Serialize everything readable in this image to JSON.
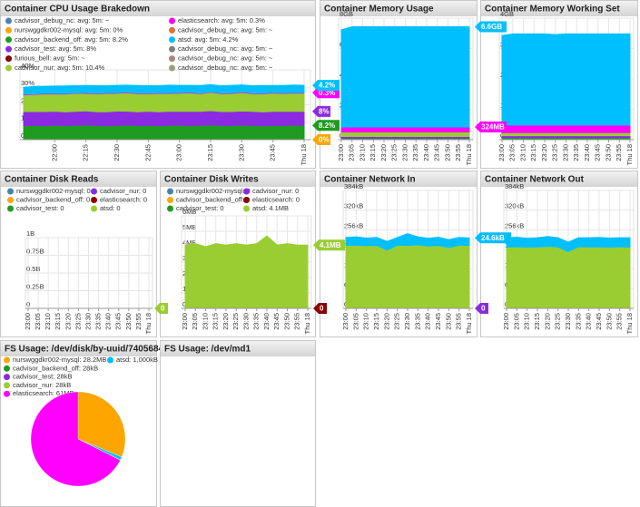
{
  "chart_data": [
    {
      "type": "area",
      "title": "Container CPU Usage Brakedown",
      "categories": [
        null,
        null,
        null,
        "22:00",
        null,
        null,
        "22:15",
        null,
        null,
        "22:30",
        null,
        null,
        "22:45",
        null,
        null,
        "23:00",
        null,
        null,
        "23:15",
        null,
        null,
        "23:30",
        null,
        null,
        "23:45",
        null,
        null,
        "Thu 18"
      ],
      "ylim": [
        0,
        40
      ],
      "yticks": [
        {
          "value": 0,
          "label": "0%"
        },
        {
          "value": 10,
          "label": "10%"
        },
        {
          "value": 20,
          "label": "20%"
        },
        {
          "value": 30,
          "label": "30%"
        },
        {
          "value": 40,
          "label": "40%"
        }
      ],
      "series": [
        {
          "name": "cadvisor_debug_nc: avg: 5m: ~",
          "color": "#4682b4"
        },
        {
          "name": "nurswggdkr002-mysql: avg: 5m: 0%",
          "color": "#ffa500",
          "badge": "0%",
          "values": [
            0,
            0,
            0,
            0,
            0,
            0,
            0,
            0,
            0,
            0,
            0,
            0,
            0,
            0,
            0,
            0,
            0,
            0,
            0,
            0,
            0,
            0,
            0,
            0,
            0,
            0,
            0,
            0
          ]
        },
        {
          "name": "cadvisor_backend_off: avg: 5m: 8.2%",
          "color": "#1f9b1f",
          "badge": "8.2%",
          "values": [
            8.1,
            8.2,
            8.0,
            8.3,
            8.1,
            8.2,
            8.4,
            8.1,
            8.0,
            8.2,
            8.3,
            8.1,
            8.2,
            8.0,
            8.2,
            8.3,
            8.1,
            8.2,
            8.4,
            8.2,
            8.1,
            8.3,
            8.2,
            8.0,
            8.2,
            8.1,
            8.3,
            8.2
          ]
        },
        {
          "name": "cadvisor_test: avg: 5m: 8%",
          "color": "#8a2be2",
          "badge": "8%",
          "values": [
            8.0,
            7.9,
            8.1,
            8.0,
            7.8,
            8.0,
            8.1,
            7.9,
            8.0,
            8.2,
            8.0,
            7.9,
            8.1,
            8.0,
            8.0,
            7.9,
            8.1,
            8.0,
            8.2,
            7.9,
            8.0,
            8.1,
            8.0,
            7.9,
            8.0,
            8.1,
            8.0,
            8.0
          ]
        },
        {
          "name": "furious_bell: avg: 5m: ~",
          "color": "#8b0000"
        },
        {
          "name": "cadvisor_nur: avg: 5m: 10.4%",
          "color": "#9acd32",
          "values": [
            9.6,
            9.8,
            10.1,
            9.9,
            10.2,
            10.4,
            10.0,
            10.3,
            10.5,
            10.2,
            10.6,
            10.4,
            10.1,
            10.5,
            10.3,
            10.4,
            10.6,
            10.2,
            10.5,
            10.3,
            10.4,
            10.6,
            10.2,
            10.4,
            10.5,
            10.3,
            10.4,
            10.4
          ]
        },
        {
          "name": "elasticsearch: avg: 5m: 0.3%",
          "color": "#ff00ff",
          "badge": "0.3%",
          "values": [
            0.3,
            0.3,
            0.3,
            0.3,
            0.3,
            0.3,
            0.3,
            0.3,
            0.3,
            0.3,
            0.3,
            0.3,
            0.3,
            0.3,
            0.3,
            0.3,
            0.3,
            0.3,
            0.3,
            0.3,
            0.3,
            0.3,
            0.3,
            0.3,
            0.3,
            0.3,
            0.3,
            0.3
          ]
        },
        {
          "name": "cadvisor_debug_nc: avg: 5m: ~",
          "color": "#e0703c"
        },
        {
          "name": "atsd: avg: 5m: 4.2%",
          "color": "#00bfff",
          "badge": "4.2%",
          "values": [
            4.0,
            4.3,
            4.1,
            4.2,
            4.4,
            4.0,
            4.2,
            4.3,
            4.1,
            4.2,
            4.0,
            4.3,
            4.2,
            4.1,
            4.4,
            4.2,
            4.0,
            4.3,
            4.1,
            4.2,
            4.3,
            4.1,
            4.2,
            4.4,
            4.0,
            4.2,
            4.3,
            4.2
          ]
        },
        {
          "name": "cadvisor_debug_nc: avg: 5m: ~",
          "color": "#808080"
        },
        {
          "name": "cadvisor_debug_nc: avg: 5m: ~",
          "color": "#a58a7a"
        },
        {
          "name": "cadvisor_debug_nc: avg: 5m: ~",
          "color": "#9aa07a"
        }
      ]
    },
    {
      "type": "area",
      "title": "Container Memory Usage",
      "categories": [
        "23:00",
        "23:05",
        "23:10",
        "23:15",
        "23:20",
        "23:25",
        "23:30",
        "23:35",
        "23:40",
        "23:45",
        "23:50",
        "23:55",
        "Thu 18"
      ],
      "ylim": [
        0,
        8
      ],
      "yticks": [
        0,
        {
          "value": 2,
          "label": "2GB"
        },
        {
          "value": 4,
          "label": "4GB"
        },
        {
          "value": 6,
          "label": "6GB"
        },
        {
          "value": 8,
          "label": "8GB"
        }
      ],
      "series": [
        {
          "color": "#ffa500",
          "values": [
            0.03,
            0.03,
            0.03,
            0.03,
            0.03,
            0.03,
            0.03,
            0.03,
            0.03,
            0.03,
            0.03,
            0.03,
            0.03
          ]
        },
        {
          "color": "#1f9b1f",
          "values": [
            0.08,
            0.08,
            0.08,
            0.08,
            0.08,
            0.08,
            0.08,
            0.08,
            0.08,
            0.08,
            0.08,
            0.08,
            0.08
          ]
        },
        {
          "color": "#8a2be2",
          "values": [
            0.1,
            0.1,
            0.1,
            0.1,
            0.1,
            0.1,
            0.1,
            0.1,
            0.1,
            0.1,
            0.1,
            0.1,
            0.1
          ]
        },
        {
          "color": "#9acd32",
          "values": [
            0.3,
            0.3,
            0.3,
            0.3,
            0.3,
            0.3,
            0.3,
            0.3,
            0.3,
            0.3,
            0.3,
            0.3,
            0.3
          ]
        },
        {
          "color": "#ff00ff",
          "badge": "324MB",
          "values": [
            0.324,
            0.324,
            0.324,
            0.324,
            0.324,
            0.324,
            0.324,
            0.324,
            0.324,
            0.324,
            0.324,
            0.324,
            0.324
          ]
        },
        {
          "color": "#00bfff",
          "badge": "6.6GB",
          "values": [
            6.4,
            6.6,
            6.6,
            6.6,
            6.6,
            6.6,
            6.6,
            6.6,
            6.6,
            6.6,
            6.6,
            6.6,
            6.6
          ]
        }
      ]
    },
    {
      "type": "area",
      "title": "Container Memory Working Set",
      "categories": [
        "23:00",
        "23:05",
        "23:10",
        "23:15",
        "23:20",
        "23:25",
        "23:30",
        "23:35",
        "23:40",
        "23:45",
        "23:50",
        "23:55",
        "Thu 18"
      ],
      "ylim": [
        0,
        4
      ],
      "yticks": [
        0,
        {
          "value": 1,
          "label": "1GB"
        },
        {
          "value": 2,
          "label": "2GB"
        },
        {
          "value": 3,
          "label": "3GB"
        },
        {
          "value": 4,
          "label": "4GB"
        }
      ],
      "series": [
        {
          "color": "#ffa500",
          "values": [
            0.02,
            0.02,
            0.02,
            0.02,
            0.02,
            0.02,
            0.02,
            0.02,
            0.02,
            0.02,
            0.02,
            0.02,
            0.02
          ]
        },
        {
          "color": "#1f9b1f",
          "values": [
            0.05,
            0.05,
            0.05,
            0.05,
            0.05,
            0.05,
            0.05,
            0.05,
            0.05,
            0.05,
            0.05,
            0.05,
            0.05
          ]
        },
        {
          "color": "#8a2be2",
          "values": [
            0.06,
            0.06,
            0.06,
            0.06,
            0.06,
            0.06,
            0.06,
            0.06,
            0.06,
            0.06,
            0.06,
            0.06,
            0.06
          ]
        },
        {
          "color": "#9acd32",
          "values": [
            0.1,
            0.1,
            0.1,
            0.1,
            0.1,
            0.1,
            0.1,
            0.1,
            0.1,
            0.1,
            0.1,
            0.1,
            0.1
          ]
        },
        {
          "color": "#ff00ff",
          "values": [
            0.25,
            0.25,
            0.25,
            0.25,
            0.25,
            0.25,
            0.25,
            0.25,
            0.25,
            0.25,
            0.25,
            0.25,
            0.25
          ]
        },
        {
          "color": "#00bfff",
          "values": [
            2.95,
            3.0,
            3.0,
            3.0,
            3.0,
            2.98,
            3.0,
            3.0,
            3.0,
            3.0,
            3.0,
            3.0,
            3.0
          ]
        }
      ]
    },
    {
      "type": "area",
      "title": "Container Disk Reads",
      "categories": [
        "23:00",
        "23:05",
        "23:10",
        "23:15",
        "23:20",
        "23:25",
        "23:30",
        "23:35",
        "23:40",
        "23:45",
        "23:50",
        "23:55",
        "Thu 18"
      ],
      "ylim": [
        0,
        1
      ],
      "yticks": [
        0,
        {
          "value": 0.25,
          "label": "0.25B"
        },
        {
          "value": 0.5,
          "label": "0.5B"
        },
        {
          "value": 0.75,
          "label": "0.75B"
        },
        {
          "value": 1,
          "label": "1B"
        }
      ],
      "series": [
        {
          "name": "nurswggdkr002-mysql: 0",
          "color": "#4682b4",
          "values": [
            0,
            0,
            0,
            0,
            0,
            0,
            0,
            0,
            0,
            0,
            0,
            0,
            0
          ]
        },
        {
          "name": "cadvisor_nur: 0",
          "color": "#8a2be2",
          "values": [
            0,
            0,
            0,
            0,
            0,
            0,
            0,
            0,
            0,
            0,
            0,
            0,
            0
          ]
        },
        {
          "name": "cadvisor_backend_off: 0",
          "color": "#ffa500",
          "values": [
            0,
            0,
            0,
            0,
            0,
            0,
            0,
            0,
            0,
            0,
            0,
            0,
            0
          ]
        },
        {
          "name": "elasticsearch: 0",
          "color": "#8b0000",
          "values": [
            0,
            0,
            0,
            0,
            0,
            0,
            0,
            0,
            0,
            0,
            0,
            0,
            0
          ]
        },
        {
          "name": "cadvisor_test: 0",
          "color": "#1f9b1f",
          "values": [
            0,
            0,
            0,
            0,
            0,
            0,
            0,
            0,
            0,
            0,
            0,
            0,
            0
          ]
        },
        {
          "name": "atsd: 0",
          "color": "#9acd32",
          "badge": "0",
          "values": [
            0,
            0,
            0,
            0,
            0,
            0,
            0,
            0,
            0,
            0,
            0,
            0,
            0
          ]
        }
      ]
    },
    {
      "type": "area",
      "title": "Container Disk Writes",
      "categories": [
        "23:00",
        "23:05",
        "23:10",
        "23:15",
        "23:20",
        "23:25",
        "23:30",
        "23:35",
        "23:40",
        "23:45",
        "23:50",
        "23:55",
        "Thu 18"
      ],
      "ylim": [
        0,
        6
      ],
      "yticks": [
        0,
        {
          "value": 1,
          "label": "1MB"
        },
        {
          "value": 2,
          "label": "2MB"
        },
        {
          "value": 3,
          "label": "3MB"
        },
        {
          "value": 4,
          "label": "4MB"
        },
        {
          "value": 5,
          "label": "5MB"
        },
        {
          "value": 6,
          "label": "6MB"
        }
      ],
      "series": [
        {
          "name": "nurswggdkr002-mysql: 0",
          "color": "#4682b4",
          "values": [
            0,
            0,
            0,
            0,
            0,
            0,
            0,
            0,
            0,
            0,
            0,
            0,
            0
          ]
        },
        {
          "name": "cadvisor_nur: 0",
          "color": "#8a2be2",
          "values": [
            0,
            0,
            0,
            0,
            0,
            0,
            0,
            0,
            0,
            0,
            0,
            0,
            0
          ]
        },
        {
          "name": "cadvisor_backend_off: 0",
          "color": "#ffa500",
          "values": [
            0,
            0,
            0,
            0,
            0,
            0,
            0,
            0,
            0,
            0,
            0,
            0,
            0
          ]
        },
        {
          "name": "elasticsearch: 0",
          "color": "#8b0000",
          "badge": "0",
          "values": [
            0,
            0,
            0,
            0,
            0,
            0,
            0,
            0,
            0,
            0,
            0,
            0,
            0
          ]
        },
        {
          "name": "cadvisor_test: 0",
          "color": "#1f9b1f",
          "values": [
            0,
            0,
            0,
            0,
            0,
            0,
            0,
            0,
            0,
            0,
            0,
            0,
            0
          ]
        },
        {
          "name": "atsd: 4.1MB",
          "color": "#9acd32",
          "badge": "4.1MB",
          "values": [
            4.1,
            4.2,
            4.0,
            4.2,
            4.1,
            4.2,
            4.1,
            4.2,
            4.7,
            4.1,
            4.2,
            4.1,
            4.1
          ]
        }
      ]
    },
    {
      "type": "area",
      "title": "Container Network In",
      "categories": [
        "23:00",
        "23:05",
        "23:10",
        "23:15",
        "23:20",
        "23:25",
        "23:30",
        "23:35",
        "23:40",
        "23:45",
        "23:50",
        "23:55",
        "Thu 18"
      ],
      "ylim": [
        0,
        384
      ],
      "yticks": [
        0,
        {
          "value": 64,
          "label": "64kB"
        },
        {
          "value": 128,
          "label": "128kB"
        },
        {
          "value": 192,
          "label": "192kB"
        },
        {
          "value": 256,
          "label": "256kB"
        },
        {
          "value": 320,
          "label": "320kB"
        },
        {
          "value": 384,
          "label": "384kB"
        }
      ],
      "series": [
        {
          "color": "#8a2be2",
          "badge": "0",
          "values": [
            0,
            0,
            0,
            0,
            0,
            0,
            0,
            0,
            0,
            0,
            0,
            0,
            0
          ]
        },
        {
          "color": "#9acd32",
          "values": [
            205,
            206,
            204,
            205,
            190,
            206,
            205,
            207,
            203,
            205,
            198,
            206,
            205
          ]
        },
        {
          "color": "#00bfff",
          "badge": "24.6kB",
          "values": [
            26,
            27,
            25,
            26,
            28,
            25,
            38,
            26,
            25,
            27,
            26,
            25,
            24.6
          ]
        }
      ]
    },
    {
      "type": "area",
      "title": "Container Network Out",
      "categories": [
        "23:00",
        "23:05",
        "23:10",
        "23:15",
        "23:20",
        "23:25",
        "23:30",
        "23:35",
        "23:40",
        "23:45",
        "23:50",
        "23:55",
        "Thu 18"
      ],
      "ylim": [
        0,
        384
      ],
      "yticks": [
        0,
        {
          "value": 64,
          "label": "64kB"
        },
        {
          "value": 128,
          "label": "128kB"
        },
        {
          "value": 192,
          "label": "192kB"
        },
        {
          "value": 256,
          "label": "256kB"
        },
        {
          "value": 320,
          "label": "320kB"
        },
        {
          "value": 384,
          "label": "384kB"
        }
      ],
      "series": [
        {
          "color": "#9acd32",
          "values": [
            200,
            201,
            199,
            200,
            202,
            200,
            185,
            201,
            200,
            200,
            199,
            201,
            200
          ]
        },
        {
          "color": "#00bfff",
          "values": [
            30,
            31,
            29,
            30,
            32,
            30,
            31,
            29,
            30,
            31,
            30,
            29,
            30
          ]
        }
      ]
    },
    {
      "type": "pie",
      "title": "FS Usage: /dev/disk/by-uuid/74056841...",
      "categories": [
        "nurswggdkr002-mysql: 28.2MB",
        "atsd: 1,000kB",
        "cadvisor_backend_off: 28kB",
        "cadvisor_test: 28kB",
        "cadvisor_nur: 28kB",
        "elasticsearch: 61MB"
      ],
      "values": [
        28200,
        1000,
        28,
        28,
        28,
        61000
      ],
      "colors": [
        "#ffa500",
        "#00bfff",
        "#1f9b1f",
        "#8a2be2",
        "#9acd32",
        "#ff00ff"
      ]
    },
    {
      "type": "pie",
      "title": "FS Usage: /dev/md1"
    }
  ]
}
